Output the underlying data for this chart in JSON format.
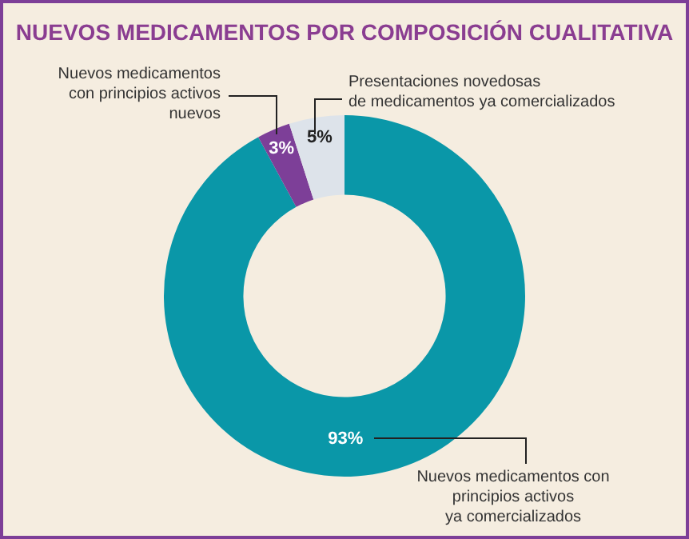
{
  "chart_data": {
    "type": "donut",
    "title": "NUEVOS MEDICAMENTOS POR COMPOSICIÓN CUALITATIVA",
    "categories": [
      "Nuevos medicamentos con\nprincipios activos\nya comercializados",
      "Nuevos medicamentos\ncon principios activos\nnuevos",
      "Presentaciones novedosas\nde medicamentos ya comercializados"
    ],
    "values": [
      93,
      3,
      5
    ],
    "colors": [
      "#0a97a8",
      "#7d3f98",
      "#dde3ea"
    ],
    "value_labels": [
      "93%",
      "3%",
      "5%"
    ],
    "legend": false
  }
}
